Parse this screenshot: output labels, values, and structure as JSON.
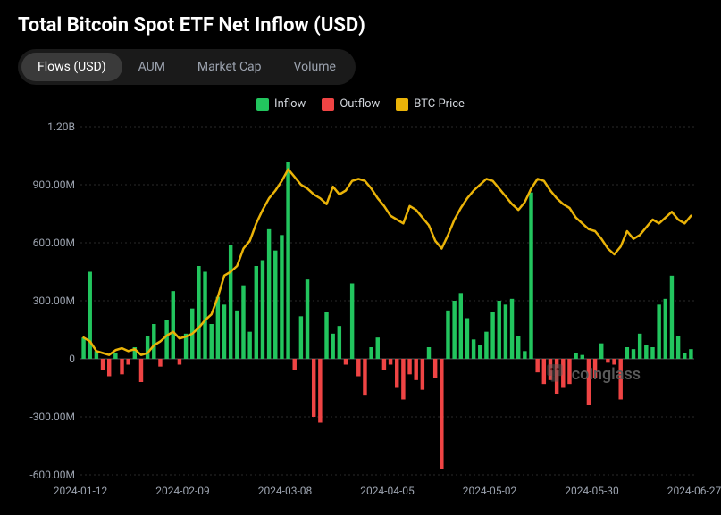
{
  "title": "Total Bitcoin Spot ETF Net Inflow (USD)",
  "tabs": [
    {
      "label": "Flows (USD)",
      "active": true
    },
    {
      "label": "AUM",
      "active": false
    },
    {
      "label": "Market Cap",
      "active": false
    },
    {
      "label": "Volume",
      "active": false
    }
  ],
  "legend": {
    "inflow": {
      "label": "Inflow",
      "color": "#22c55e"
    },
    "outflow": {
      "label": "Outflow",
      "color": "#ef4444"
    },
    "btc": {
      "label": "BTC Price",
      "color": "#eab308"
    }
  },
  "watermark": "coinglass",
  "chart": {
    "type": "bar-line-combo",
    "background_color": "#000000",
    "grid_color": "#2a2a2a",
    "axis_label_color": "#9ca3af",
    "axis_fontsize": 12,
    "ylim": [
      -600,
      1200
    ],
    "ytick_step": 300,
    "ytick_labels": [
      "-600.00M",
      "-300.00M",
      "0",
      "300.00M",
      "600.00M",
      "900.00M",
      "1.20B"
    ],
    "xtick_labels": [
      "2024-01-12",
      "2024-02-09",
      "2024-03-08",
      "2024-04-05",
      "2024-05-02",
      "2024-05-30",
      "2024-06-27"
    ],
    "bar_width": 0.62,
    "inflow_color": "#22c55e",
    "outflow_color": "#ef4444",
    "line_color": "#eab308",
    "line_width": 2.5,
    "bars": [
      110,
      450,
      40,
      -60,
      -90,
      30,
      -80,
      -30,
      60,
      -120,
      120,
      180,
      -40,
      200,
      350,
      -30,
      130,
      260,
      480,
      450,
      180,
      320,
      280,
      590,
      250,
      380,
      140,
      480,
      510,
      670,
      560,
      640,
      1020,
      -60,
      220,
      410,
      -300,
      -330,
      240,
      130,
      170,
      -30,
      390,
      -90,
      -190,
      60,
      110,
      -60,
      -30,
      -150,
      -210,
      -80,
      -110,
      -160,
      60,
      -100,
      -570,
      250,
      300,
      340,
      210,
      100,
      70,
      140,
      240,
      300,
      280,
      310,
      120,
      40,
      860,
      -70,
      -130,
      -110,
      -180,
      -150,
      -130,
      30,
      20,
      -240,
      -100,
      80,
      -20,
      -30,
      -210,
      60,
      50,
      130,
      70,
      60,
      280,
      310,
      430,
      120,
      30,
      50
    ],
    "btc_price_scaled": [
      110,
      90,
      40,
      30,
      20,
      45,
      55,
      40,
      50,
      20,
      30,
      70,
      90,
      120,
      140,
      105,
      115,
      130,
      160,
      200,
      230,
      320,
      430,
      450,
      480,
      570,
      610,
      700,
      770,
      830,
      870,
      920,
      980,
      940,
      900,
      880,
      850,
      830,
      800,
      890,
      850,
      870,
      920,
      930,
      920,
      880,
      830,
      790,
      740,
      720,
      700,
      790,
      770,
      730,
      690,
      610,
      570,
      640,
      720,
      780,
      830,
      870,
      900,
      930,
      920,
      880,
      840,
      800,
      770,
      810,
      880,
      930,
      920,
      870,
      830,
      800,
      780,
      730,
      700,
      670,
      660,
      620,
      570,
      540,
      580,
      660,
      620,
      640,
      680,
      720,
      700,
      730,
      760,
      720,
      700,
      740
    ]
  }
}
